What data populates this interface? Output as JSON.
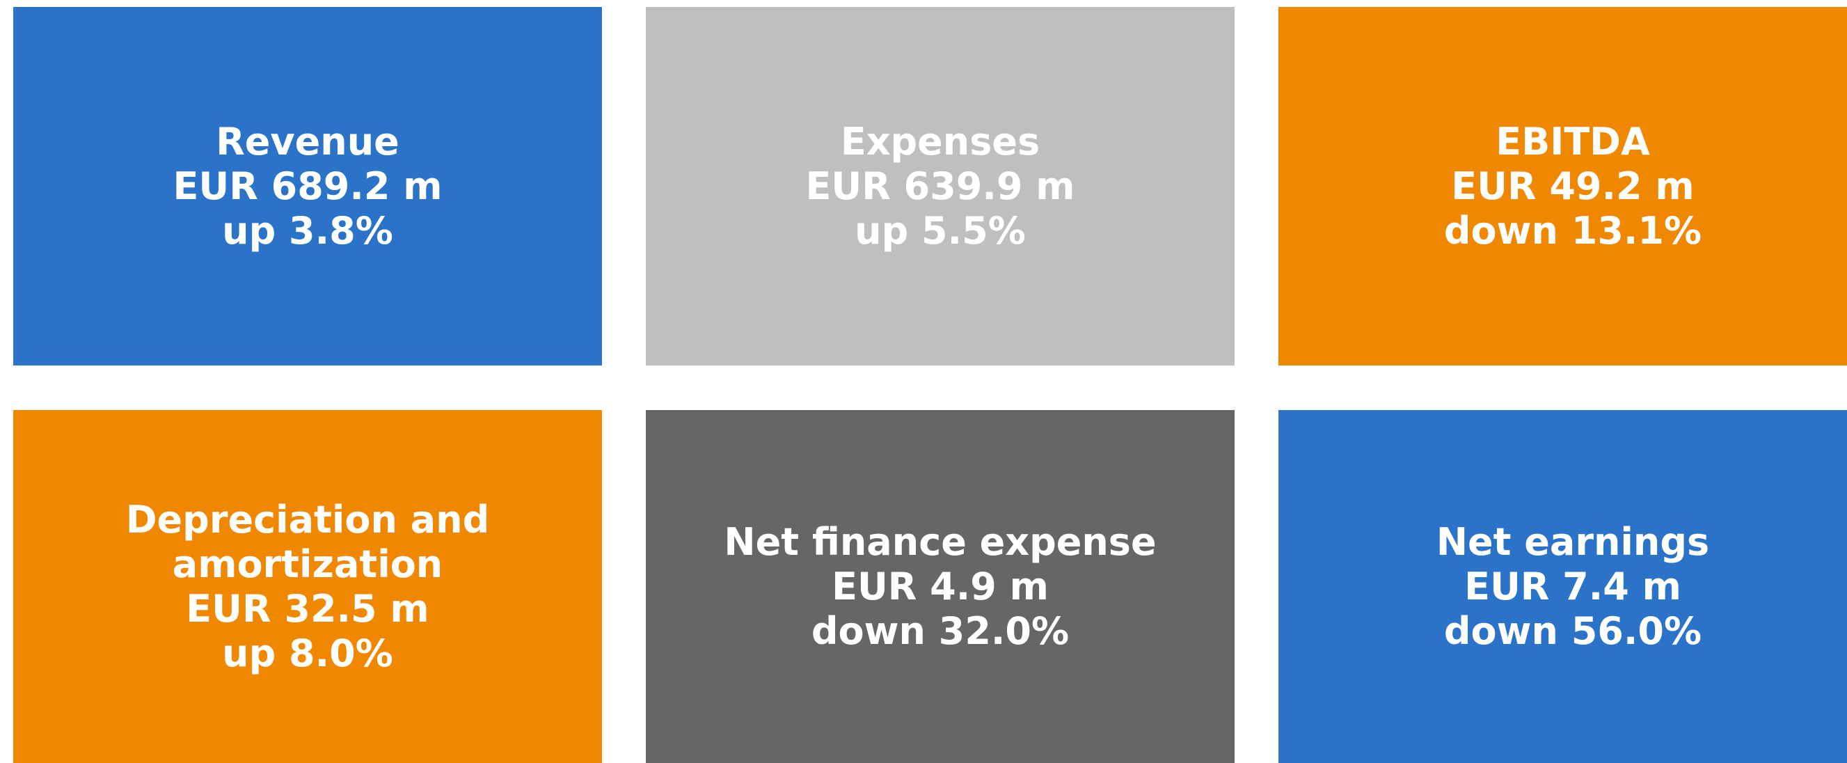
{
  "tiles": [
    {
      "title": "Revenue",
      "value": "EUR 689.2 m",
      "change": "up 3.8%",
      "color": "#2a73c8"
    },
    {
      "title": "Expenses",
      "value": "EUR 639.9 m",
      "change": "up 5.5%",
      "color": "#bfbfbf"
    },
    {
      "title": "EBITDA",
      "value": "EUR 49.2 m",
      "change": "down 13.1%",
      "color": "#ef8700"
    },
    {
      "title": "Depreciation and amortization",
      "value": "EUR 32.5 m",
      "change": "up 8.0%",
      "color": "#ef8700"
    },
    {
      "title": "Net finance expense",
      "value": "EUR 4.9 m",
      "change": "down 32.0%",
      "color": "#666666"
    },
    {
      "title": "Net earnings",
      "value": "EUR 7.4 m",
      "change": "down 56.0%",
      "color": "#2a73c8"
    }
  ]
}
